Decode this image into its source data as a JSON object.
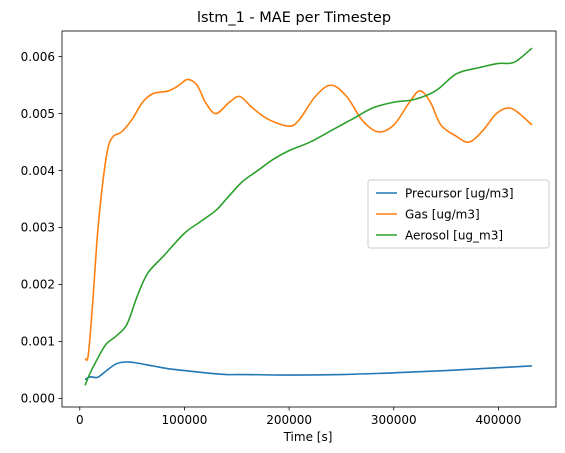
{
  "chart_data": {
    "type": "line",
    "title": "lstm_1 - MAE per Timestep",
    "xlabel": "Time [s]",
    "ylabel": "",
    "xlim": [
      -17000,
      455000
    ],
    "ylim": [
      -0.00015,
      0.00645
    ],
    "xticks": [
      0,
      100000,
      200000,
      300000,
      400000
    ],
    "xtick_labels": [
      "0",
      "100000",
      "200000",
      "300000",
      "400000"
    ],
    "yticks": [
      0.0,
      0.001,
      0.002,
      0.003,
      0.004,
      0.005,
      0.006
    ],
    "ytick_labels": [
      "0.000",
      "0.001",
      "0.002",
      "0.003",
      "0.004",
      "0.005",
      "0.006"
    ],
    "grid": false,
    "legend_position": "center-right",
    "series": [
      {
        "name": "Precursor [ug/m3]",
        "color": "#1f77b4",
        "points": [
          [
            5000,
            0.00033
          ],
          [
            10000,
            0.00038
          ],
          [
            17000,
            0.00037
          ],
          [
            25000,
            0.00048
          ],
          [
            35000,
            0.00061
          ],
          [
            45000,
            0.00064
          ],
          [
            55000,
            0.00062
          ],
          [
            70000,
            0.00057
          ],
          [
            85000,
            0.00052
          ],
          [
            100000,
            0.00049
          ],
          [
            120000,
            0.00045
          ],
          [
            140000,
            0.00042
          ],
          [
            160000,
            0.00042
          ],
          [
            200000,
            0.00041
          ],
          [
            250000,
            0.00042
          ],
          [
            300000,
            0.00045
          ],
          [
            350000,
            0.00049
          ],
          [
            400000,
            0.00054
          ],
          [
            432000,
            0.00057
          ]
        ]
      },
      {
        "name": "Gas [ug/m3]",
        "color": "#ff7f0e",
        "points": [
          [
            5000,
            0.0007
          ],
          [
            8000,
            0.00075
          ],
          [
            12000,
            0.0016
          ],
          [
            17000,
            0.0029
          ],
          [
            22000,
            0.0038
          ],
          [
            27000,
            0.0044
          ],
          [
            32000,
            0.0046
          ],
          [
            40000,
            0.00468
          ],
          [
            50000,
            0.0049
          ],
          [
            60000,
            0.0052
          ],
          [
            70000,
            0.00535
          ],
          [
            85000,
            0.0054
          ],
          [
            95000,
            0.0055
          ],
          [
            103000,
            0.0056
          ],
          [
            112000,
            0.0055
          ],
          [
            120000,
            0.0052
          ],
          [
            130000,
            0.005
          ],
          [
            143000,
            0.0052
          ],
          [
            153000,
            0.0053
          ],
          [
            165000,
            0.0051
          ],
          [
            180000,
            0.0049
          ],
          [
            200000,
            0.00478
          ],
          [
            210000,
            0.0049
          ],
          [
            225000,
            0.0053
          ],
          [
            240000,
            0.0055
          ],
          [
            255000,
            0.0053
          ],
          [
            270000,
            0.00488
          ],
          [
            285000,
            0.00468
          ],
          [
            300000,
            0.0048
          ],
          [
            315000,
            0.0052
          ],
          [
            325000,
            0.0054
          ],
          [
            335000,
            0.0052
          ],
          [
            345000,
            0.0048
          ],
          [
            360000,
            0.0046
          ],
          [
            372000,
            0.0045
          ],
          [
            385000,
            0.0047
          ],
          [
            398000,
            0.005
          ],
          [
            410000,
            0.0051
          ],
          [
            420000,
            0.005
          ],
          [
            432000,
            0.0048
          ]
        ]
      },
      {
        "name": "Aerosol [ug_m3]",
        "color": "#2ca02c",
        "points": [
          [
            5000,
            0.00023
          ],
          [
            10000,
            0.00045
          ],
          [
            17000,
            0.0007
          ],
          [
            25000,
            0.00095
          ],
          [
            35000,
            0.0011
          ],
          [
            45000,
            0.0013
          ],
          [
            55000,
            0.0018
          ],
          [
            65000,
            0.0022
          ],
          [
            80000,
            0.0025
          ],
          [
            100000,
            0.0029
          ],
          [
            115000,
            0.0031
          ],
          [
            130000,
            0.0033
          ],
          [
            140000,
            0.0035
          ],
          [
            155000,
            0.0038
          ],
          [
            170000,
            0.004
          ],
          [
            185000,
            0.0042
          ],
          [
            200000,
            0.00435
          ],
          [
            220000,
            0.0045
          ],
          [
            240000,
            0.0047
          ],
          [
            260000,
            0.0049
          ],
          [
            280000,
            0.0051
          ],
          [
            300000,
            0.0052
          ],
          [
            320000,
            0.00525
          ],
          [
            340000,
            0.0054
          ],
          [
            360000,
            0.0057
          ],
          [
            380000,
            0.0058
          ],
          [
            400000,
            0.00588
          ],
          [
            415000,
            0.0059
          ],
          [
            432000,
            0.00615
          ]
        ]
      }
    ]
  }
}
